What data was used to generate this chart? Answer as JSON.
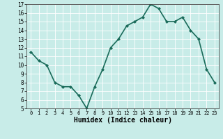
{
  "x": [
    0,
    1,
    2,
    3,
    4,
    5,
    6,
    7,
    8,
    9,
    10,
    11,
    12,
    13,
    14,
    15,
    16,
    17,
    18,
    19,
    20,
    21,
    22,
    23
  ],
  "y": [
    11.5,
    10.5,
    10.0,
    8.0,
    7.5,
    7.5,
    6.5,
    5.0,
    7.5,
    9.5,
    12.0,
    13.0,
    14.5,
    15.0,
    15.5,
    17.0,
    16.5,
    15.0,
    15.0,
    15.5,
    14.0,
    13.0,
    9.5,
    8.0
  ],
  "line_color": "#1a6b5a",
  "marker": "D",
  "marker_size": 2,
  "bg_color": "#c8ece8",
  "grid_color": "#ffffff",
  "xlabel": "Humidex (Indice chaleur)",
  "ylim": [
    5,
    17
  ],
  "xlim": [
    -0.5,
    23.5
  ],
  "yticks": [
    5,
    6,
    7,
    8,
    9,
    10,
    11,
    12,
    13,
    14,
    15,
    16,
    17
  ],
  "xticks": [
    0,
    1,
    2,
    3,
    4,
    5,
    6,
    7,
    8,
    9,
    10,
    11,
    12,
    13,
    14,
    15,
    16,
    17,
    18,
    19,
    20,
    21,
    22,
    23
  ],
  "xlabel_fontsize": 7,
  "tick_fontsize": 6,
  "linewidth": 1.2
}
